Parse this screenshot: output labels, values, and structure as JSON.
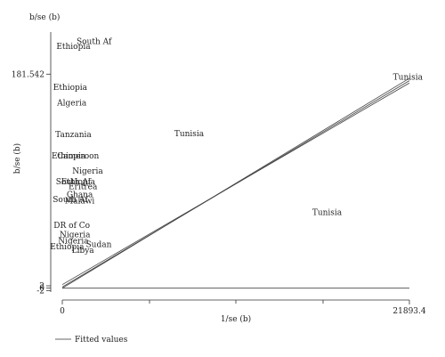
{
  "chart_data": {
    "type": "scatter",
    "title": "",
    "top_label": "b/se (b)",
    "xlabel": "1/se (b)",
    "ylabel": "b/se (b)",
    "xlim": [
      0,
      21893.4
    ],
    "ylim": [
      -1,
      218
    ],
    "x_ticks": [
      {
        "value": 0,
        "label": "0"
      },
      {
        "value": 21893.4,
        "label": "21893.4"
      }
    ],
    "y_ticks": [
      {
        "value": 181.542,
        "label": "181.542"
      },
      {
        "value": 2,
        "label": "2"
      },
      {
        "value": 0,
        "label": "0"
      },
      {
        "value": -2,
        "label": "-2"
      }
    ],
    "points": [
      {
        "label": "South Af",
        "x": 2000,
        "y": 207
      },
      {
        "label": "Ethiopia",
        "x": 700,
        "y": 203
      },
      {
        "label": "Tunisia",
        "x": 21800,
        "y": 177
      },
      {
        "label": "Ethiopia",
        "x": 500,
        "y": 168
      },
      {
        "label": "Algeria",
        "x": 600,
        "y": 155
      },
      {
        "label": "Tanzania",
        "x": 700,
        "y": 128
      },
      {
        "label": "Tunisia",
        "x": 8000,
        "y": 129
      },
      {
        "label": "Ethiopia",
        "x": 400,
        "y": 110
      },
      {
        "label": "Cameroon",
        "x": 1000,
        "y": 110
      },
      {
        "label": "Nigeria",
        "x": 1600,
        "y": 97
      },
      {
        "label": "South Af",
        "x": 700,
        "y": 88
      },
      {
        "label": "Ethiopia",
        "x": 1000,
        "y": 88
      },
      {
        "label": "Eritrea",
        "x": 1300,
        "y": 84
      },
      {
        "label": "Tunisia",
        "x": 16700,
        "y": 62
      },
      {
        "label": "Ghana",
        "x": 1100,
        "y": 77
      },
      {
        "label": "South Af",
        "x": 500,
        "y": 73
      },
      {
        "label": "Malawi",
        "x": 1100,
        "y": 72
      },
      {
        "label": "DR of Co",
        "x": 600,
        "y": 51
      },
      {
        "label": "Nigeria",
        "x": 800,
        "y": 43
      },
      {
        "label": "Sudan",
        "x": 2300,
        "y": 35
      },
      {
        "label": "Nigeria",
        "x": 700,
        "y": 38
      },
      {
        "label": "Ethiopia",
        "x": 300,
        "y": 33
      },
      {
        "label": "Libya",
        "x": 1300,
        "y": 30
      }
    ],
    "fitted_lines": [
      {
        "x": [
          0,
          21893.4
        ],
        "y": [
          3,
          174
        ]
      },
      {
        "x": [
          0,
          21893.4
        ],
        "y": [
          0,
          178
        ]
      },
      {
        "x": [
          0,
          21893.4
        ],
        "y": [
          1,
          176
        ]
      }
    ],
    "zero_line": {
      "x": [
        0,
        21893.4
      ],
      "y": [
        0,
        0
      ]
    },
    "legend": {
      "position": "bottom-left",
      "label": "Fitted values"
    }
  }
}
